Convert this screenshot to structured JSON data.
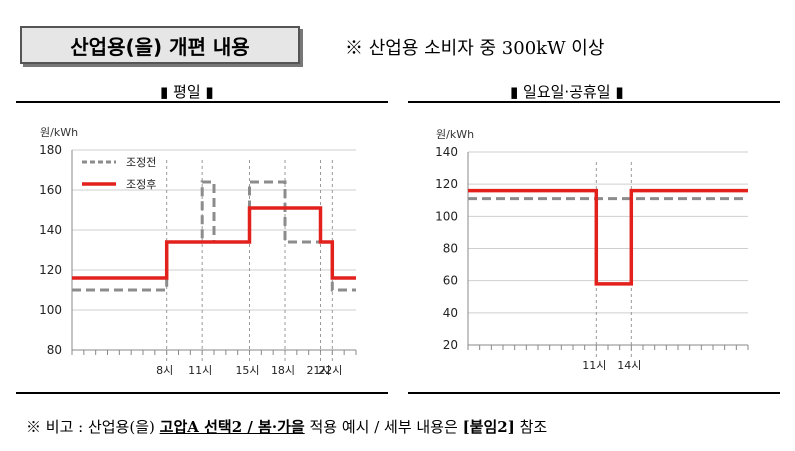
{
  "header": {
    "title": "산업용(을) 개편 내용",
    "scope_note": "※ 산업용 소비자 중 300kW 이상"
  },
  "panels": {
    "weekday_title": "▮ 평일 ▮",
    "holiday_title": "▮ 일요일·공휴일 ▮"
  },
  "colors": {
    "before": "#8c8c8c",
    "after": "#e2211c",
    "grid": "#cfcfcf",
    "guide": "#999999"
  },
  "chart_data": [
    {
      "type": "line",
      "ylabel": "원/kWh",
      "ylim": [
        80,
        180
      ],
      "yticks": [
        "80",
        "100",
        "120",
        "140",
        "160",
        "180"
      ],
      "xlim": [
        0,
        24
      ],
      "xtick_labels": [
        {
          "x": 8,
          "label": "8시"
        },
        {
          "x": 11,
          "label": "11시"
        },
        {
          "x": 15,
          "label": "15시"
        },
        {
          "x": 18,
          "label": "18시"
        },
        {
          "x": 21,
          "label": "21시"
        },
        {
          "x": 22,
          "label": "22시"
        }
      ],
      "legend_position": "top-left",
      "series": [
        {
          "name": "조정전",
          "style": "dashed",
          "x": [
            0,
            8,
            8,
            11,
            11,
            12,
            12,
            15,
            15,
            18,
            18,
            21,
            21,
            22,
            22,
            24
          ],
          "y": [
            110,
            110,
            134,
            134,
            164,
            164,
            134,
            134,
            164,
            164,
            134,
            134,
            134,
            134,
            110,
            110
          ]
        },
        {
          "name": "조정후",
          "style": "solid",
          "x": [
            0,
            8,
            8,
            15,
            15,
            21,
            21,
            22,
            22,
            24
          ],
          "y": [
            116,
            116,
            134,
            134,
            151,
            151,
            134,
            134,
            116,
            116
          ]
        }
      ]
    },
    {
      "type": "line",
      "ylabel": "원/kWh",
      "ylim": [
        20,
        140
      ],
      "yticks": [
        "20",
        "40",
        "60",
        "80",
        "100",
        "120",
        "140"
      ],
      "xlim": [
        0,
        24
      ],
      "xtick_labels": [
        {
          "x": 11,
          "label": "11시"
        },
        {
          "x": 14,
          "label": "14시"
        }
      ],
      "series": [
        {
          "name": "조정전",
          "style": "dashed",
          "x": [
            0,
            24
          ],
          "y": [
            111,
            111
          ]
        },
        {
          "name": "조정후",
          "style": "solid",
          "x": [
            0,
            11,
            11,
            14,
            14,
            24
          ],
          "y": [
            116,
            116,
            58,
            58,
            116,
            116
          ]
        }
      ]
    }
  ],
  "footer": {
    "prefix": "※ 비고 : 산업용(을) ",
    "emphasis": "고압A 선택2 / 봄·가을",
    "middle": " 적용 예시 / 세부 내용은 ",
    "ref": "[붙임2]",
    "suffix": " 참조"
  }
}
